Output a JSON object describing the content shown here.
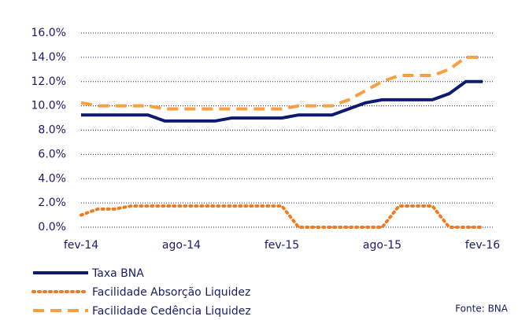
{
  "chart_data": {
    "type": "line",
    "categories": [
      "fev-14",
      null,
      null,
      null,
      null,
      null,
      "ago-14",
      null,
      null,
      null,
      null,
      null,
      "fev-15",
      null,
      null,
      null,
      null,
      null,
      "ago-15",
      null,
      null,
      null,
      null,
      null,
      "fev-16"
    ],
    "series": [
      {
        "name": "Taxa BNA",
        "color": "#0d1a6e",
        "style": "solid",
        "values": [
          9.25,
          9.25,
          9.25,
          9.25,
          9.25,
          8.75,
          8.75,
          8.75,
          8.75,
          9.0,
          9.0,
          9.0,
          9.0,
          9.25,
          9.25,
          9.25,
          9.75,
          10.25,
          10.5,
          10.5,
          10.5,
          10.5,
          11.0,
          12.0,
          12.0
        ]
      },
      {
        "name": "Facilidade Absorção Liquidez",
        "color": "#f47a20",
        "style": "dotted",
        "values": [
          1.0,
          1.5,
          1.5,
          1.75,
          1.75,
          1.75,
          1.75,
          1.75,
          1.75,
          1.75,
          1.75,
          1.75,
          1.75,
          0,
          0,
          0,
          0,
          0,
          0,
          1.75,
          1.75,
          1.75,
          0,
          0,
          0
        ]
      },
      {
        "name": "Facilidade Cedência Liquidez",
        "color": "#f9a040",
        "style": "dashed",
        "values": [
          10.25,
          10.0,
          10.0,
          10.0,
          10.0,
          9.75,
          9.75,
          9.75,
          9.75,
          9.75,
          9.75,
          9.75,
          9.75,
          10.0,
          10.0,
          10.0,
          10.5,
          11.25,
          12.0,
          12.5,
          12.5,
          12.5,
          13.0,
          14.0,
          14.0
        ]
      }
    ],
    "ylim": [
      0,
      16
    ],
    "yticks": [
      {
        "value": 0,
        "label": "0.0%"
      },
      {
        "value": 2,
        "label": "2.0%"
      },
      {
        "value": 4,
        "label": "4.0%"
      },
      {
        "value": 6,
        "label": "6.0%"
      },
      {
        "value": 8,
        "label": "8.0%"
      },
      {
        "value": 10,
        "label": "10.0%"
      },
      {
        "value": 12,
        "label": "12.0%"
      },
      {
        "value": 14,
        "label": "14.0%"
      },
      {
        "value": 16,
        "label": "16.0%"
      }
    ],
    "grid": true,
    "grid_color": "#1a1a6e",
    "legend": "bottom-left",
    "annotation": "Fonte: BNA"
  }
}
